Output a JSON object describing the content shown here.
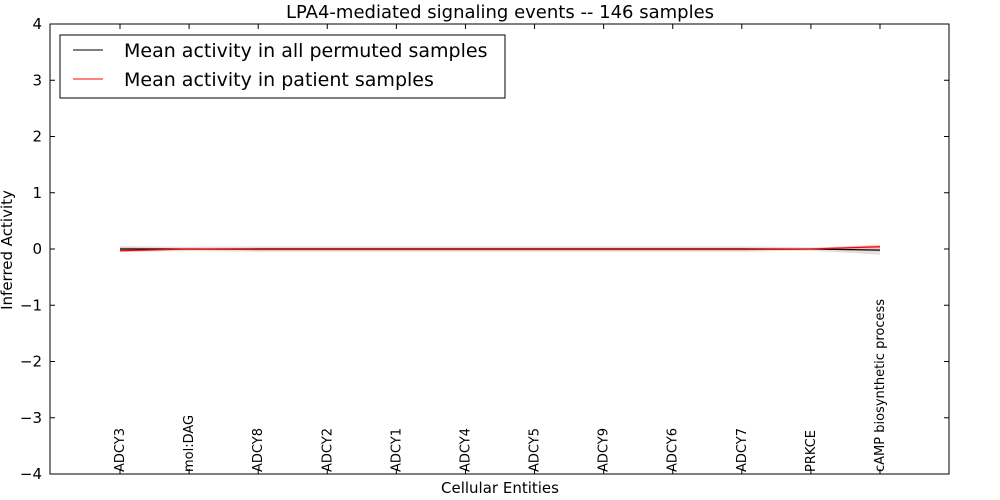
{
  "chart_data": {
    "type": "line",
    "title": "LPA4-mediated signaling events -- 146 samples",
    "xlabel": "Cellular Entities",
    "ylabel": "Inferred Activity",
    "ylim": [
      -4,
      4
    ],
    "yticks": [
      4,
      3,
      2,
      1,
      0,
      -1,
      -2,
      -3,
      -4
    ],
    "ytick_labels": [
      "4",
      "3",
      "2",
      "1",
      "0",
      "−1",
      "−2",
      "−3",
      "−4"
    ],
    "categories": [
      "ADCY3",
      "mol:DAG",
      "ADCY8",
      "ADCY2",
      "ADCY1",
      "ADCY4",
      "ADCY5",
      "ADCY9",
      "ADCY6",
      "ADCY7",
      "PRKCE",
      "cAMP biosynthetic process"
    ],
    "series": [
      {
        "name": "Mean activity in all permuted samples",
        "color": "#000000",
        "values": [
          0.0,
          0.0,
          0.0,
          0.0,
          0.0,
          0.0,
          0.0,
          0.0,
          0.0,
          0.0,
          0.0,
          -0.02
        ],
        "band_lower": [
          -0.05,
          -0.04,
          -0.05,
          -0.05,
          -0.05,
          -0.05,
          -0.05,
          -0.05,
          -0.05,
          -0.05,
          -0.03,
          -0.1
        ],
        "band_upper": [
          0.05,
          0.04,
          0.05,
          0.05,
          0.05,
          0.05,
          0.05,
          0.05,
          0.05,
          0.05,
          0.03,
          0.06
        ]
      },
      {
        "name": "Mean activity in patient samples",
        "color": "#ff0000",
        "values": [
          -0.03,
          0.0,
          -0.01,
          -0.01,
          -0.01,
          -0.01,
          -0.01,
          -0.01,
          -0.01,
          -0.01,
          0.0,
          0.04
        ],
        "band_lower": [
          -0.06,
          -0.01,
          -0.02,
          -0.02,
          -0.02,
          -0.02,
          -0.02,
          -0.02,
          -0.02,
          -0.02,
          -0.01,
          0.0
        ],
        "band_upper": [
          0.03,
          0.01,
          0.0,
          0.0,
          0.0,
          0.0,
          0.0,
          0.0,
          0.0,
          0.0,
          0.01,
          0.08
        ]
      }
    ],
    "legend_position": "top-left",
    "band_colors": {
      "permuted": "#d9d9d9",
      "patient": "#f4a6a6"
    }
  }
}
